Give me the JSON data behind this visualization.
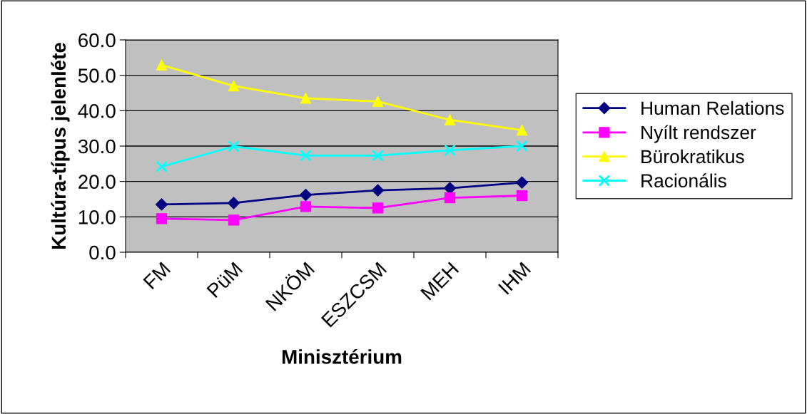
{
  "chart_data": {
    "type": "line",
    "xlabel": "Minisztérium",
    "ylabel": "Kultúra-típus jelenléte",
    "categories": [
      "FM",
      "PüM",
      "NKÖM",
      "ESZCSM",
      "MEH",
      "IHM"
    ],
    "series": [
      {
        "name": "Human Relations",
        "color": "#000080",
        "marker": "diamond",
        "values": [
          13.5,
          13.9,
          16.2,
          17.5,
          18.1,
          19.7
        ]
      },
      {
        "name": "Nyílt rendszer",
        "color": "#ff00ff",
        "marker": "square",
        "values": [
          9.5,
          9.1,
          12.9,
          12.5,
          15.4,
          16.0
        ]
      },
      {
        "name": "Bürokratikus",
        "color": "#ffff00",
        "marker": "triangle",
        "values": [
          52.9,
          47.0,
          43.5,
          42.6,
          37.4,
          34.5
        ]
      },
      {
        "name": "Racionális",
        "color": "#00ffff",
        "marker": "cross",
        "values": [
          24.2,
          29.9,
          27.3,
          27.3,
          28.8,
          30.0
        ]
      }
    ],
    "ylim": [
      0,
      60
    ],
    "yticks": [
      {
        "value": 0,
        "label": "0.0"
      },
      {
        "value": 10,
        "label": "10.0"
      },
      {
        "value": 20,
        "label": "20.0"
      },
      {
        "value": 30,
        "label": "30.0"
      },
      {
        "value": 40,
        "label": "40.0"
      },
      {
        "value": 50,
        "label": "50.0"
      },
      {
        "value": 60,
        "label": "60.0"
      }
    ],
    "grid": "y",
    "legend": "right",
    "line_style": "solid"
  }
}
